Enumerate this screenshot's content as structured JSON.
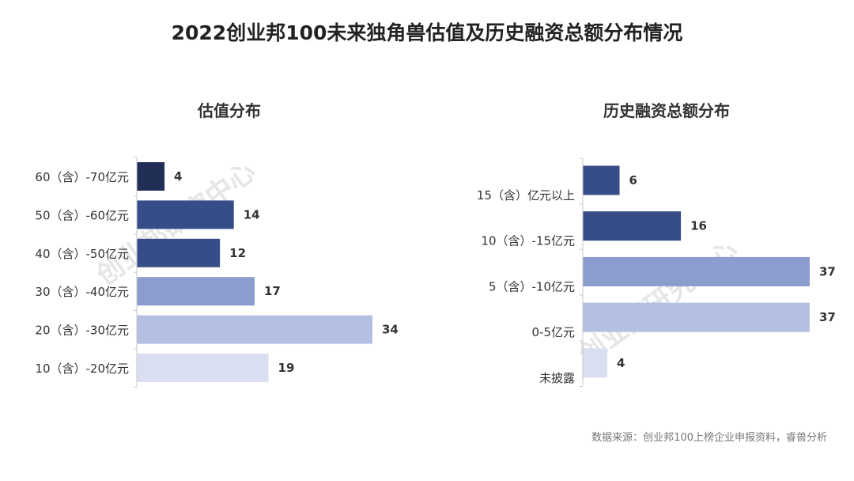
{
  "title": "2022创业邦100未来独角兽估值及历史融资总额分布情况",
  "watermark": "创业邦研究中心",
  "source_note": "数据来源：创业邦100上榜企业申报资料，睿兽分析",
  "chart_data": [
    {
      "type": "bar",
      "orientation": "horizontal",
      "title": "估值分布",
      "categories": [
        "60（含）-70亿元",
        "50（含）-60亿元",
        "40（含）-50亿元",
        "30（含）-40亿元",
        "20（含）-30亿元",
        "10（含）-20亿元"
      ],
      "values": [
        4,
        14,
        12,
        17,
        34,
        19
      ],
      "colors": [
        "#212f57",
        "#374d8a",
        "#374d8a",
        "#8b9ccf",
        "#b5bfe1",
        "#d9def0"
      ],
      "xlabel": "",
      "ylabel": "",
      "xlim": [
        0,
        34
      ]
    },
    {
      "type": "bar",
      "orientation": "horizontal",
      "title": "历史融资总额分布",
      "categories": [
        "15（含）亿元以上",
        "10（含）-15亿元",
        "5（含）-10亿元",
        "0-5亿元",
        "未披露"
      ],
      "values": [
        6,
        16,
        37,
        37,
        4
      ],
      "colors": [
        "#374d8a",
        "#374d8a",
        "#8b9ccf",
        "#b5bfe1",
        "#d9def0"
      ],
      "xlabel": "",
      "ylabel": "",
      "xlim": [
        0,
        37
      ]
    }
  ]
}
